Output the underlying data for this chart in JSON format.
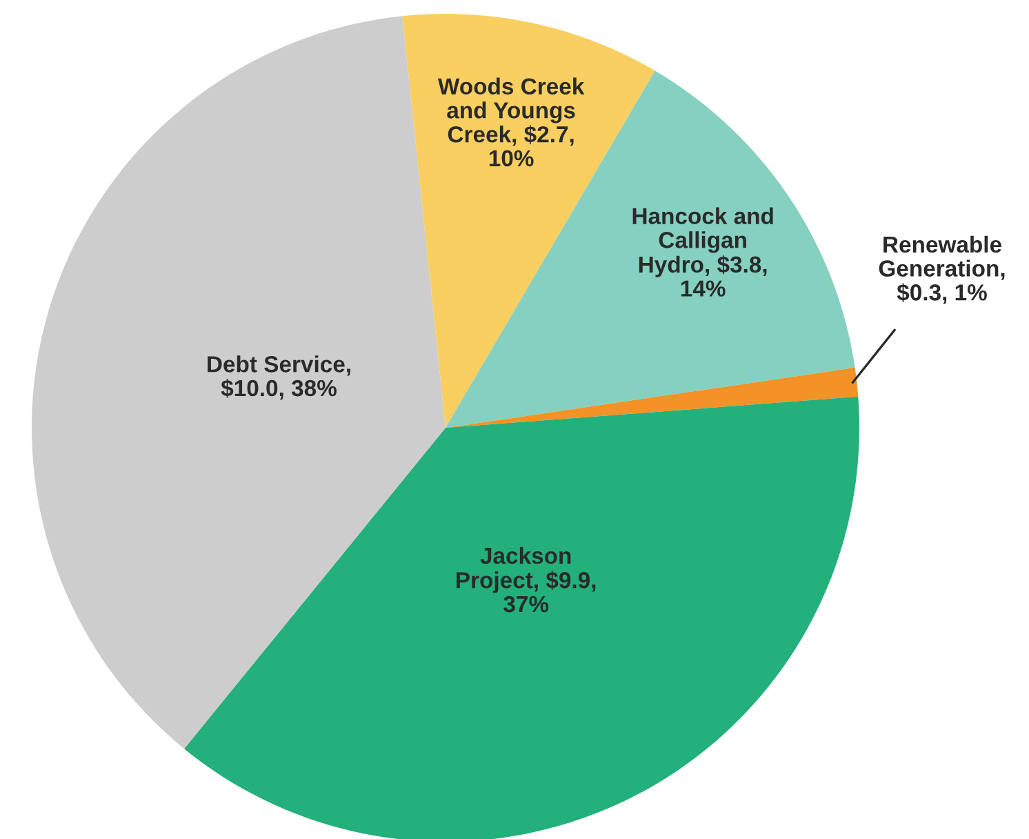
{
  "chart_data": {
    "type": "pie",
    "categories": [
      "Woods Creek\nand Youngs\nCreek",
      "Hancock and\nCalligan\nHydro",
      "Renewable\nGeneration",
      "Jackson\nProject",
      "Debt Service"
    ],
    "values": [
      2.7,
      3.8,
      0.3,
      9.9,
      10.0
    ],
    "value_labels": [
      "$2.7,\n10%",
      "$3.8,\n14%",
      ",\n$0.3, 1%",
      "$9.9,\n37%",
      ",\n$10.0, 38%"
    ],
    "colors": [
      "#f8cf60",
      "#85d0c0",
      "#f39226",
      "#23b07b",
      "#cdcdcd"
    ],
    "legend": false
  }
}
